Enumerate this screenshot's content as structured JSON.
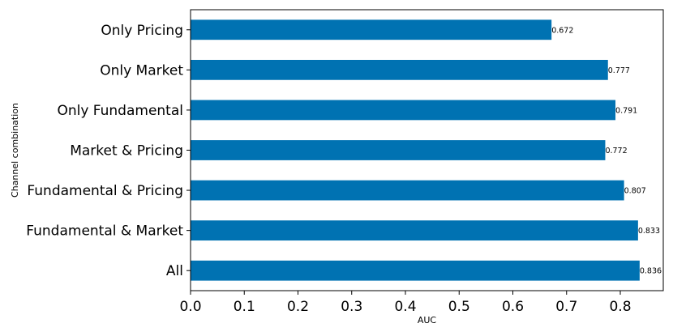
{
  "chart_data": {
    "type": "bar",
    "orientation": "horizontal",
    "categories": [
      "Only Pricing",
      "Only Market",
      "Only Fundamental",
      "Market & Pricing",
      "Fundamental & Pricing",
      "Fundamental & Market",
      "All"
    ],
    "values": [
      0.672,
      0.777,
      0.791,
      0.772,
      0.807,
      0.833,
      0.836
    ],
    "value_labels": [
      "0.672",
      "0.777",
      "0.791",
      "0.772",
      "0.807",
      "0.833",
      "0.836"
    ],
    "xlabel": "AUC",
    "ylabel": "Channel combination",
    "xlim": [
      0.0,
      0.88
    ],
    "xticks": [
      "0.0",
      "0.1",
      "0.2",
      "0.3",
      "0.4",
      "0.5",
      "0.6",
      "0.7",
      "0.8"
    ],
    "grid": false,
    "bar_color": "#0072b2"
  }
}
